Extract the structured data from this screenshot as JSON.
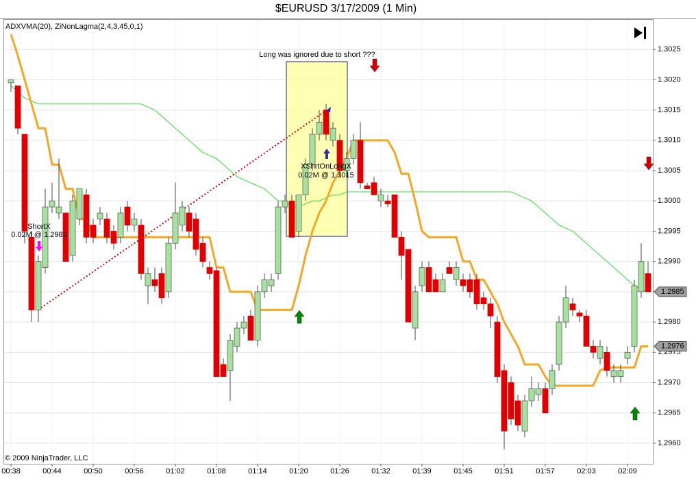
{
  "chart_data": {
    "type": "candlestick",
    "title": "$EURUSD  3/17/2009 (1 Min)",
    "indicator_label": "ADXVMA(20), ZiNonLagma(2,4,3,45,0,1)",
    "annotations": [
      "Long was ignored due to short ???",
      "ShortX",
      "0.02M @ 1.2982",
      "XShrtOnLongX",
      "0.02M @ 1.3015"
    ],
    "copyright": "© 2009 NinjaTrader, LLC",
    "categories": [
      "00:38",
      null,
      null,
      null,
      null,
      null,
      "00:44",
      null,
      null,
      null,
      null,
      null,
      "00:50",
      null,
      null,
      null,
      null,
      null,
      "00:56",
      null,
      null,
      null,
      null,
      null,
      "01:02",
      null,
      null,
      null,
      null,
      null,
      "01:08",
      null,
      null,
      null,
      null,
      null,
      "01:14",
      null,
      null,
      null,
      null,
      null,
      "01:20",
      null,
      null,
      null,
      null,
      null,
      "01:26",
      null,
      null,
      null,
      null,
      null,
      "01:32",
      null,
      null,
      null,
      null,
      null,
      "01:39",
      null,
      null,
      null,
      null,
      null,
      "01:45",
      null,
      null,
      null,
      null,
      null,
      "01:51",
      null,
      null,
      null,
      null,
      null,
      "01:57",
      null,
      null,
      null,
      null,
      null,
      "02:03",
      null,
      null,
      null,
      null,
      null,
      "02:09",
      null,
      null,
      null
    ],
    "ohlc": [
      [
        1.30195,
        1.302,
        1.3018,
        1.302
      ],
      [
        1.3019,
        1.3019,
        1.3011,
        1.3012
      ],
      [
        1.3011,
        1.3011,
        1.2993,
        1.2995
      ],
      [
        1.2994,
        1.2995,
        1.298,
        1.2982
      ],
      [
        1.2982,
        1.2991,
        1.298,
        1.299
      ],
      [
        1.2989,
        1.3002,
        1.2988,
        1.2999
      ],
      [
        1.2999,
        1.3003,
        1.2998,
        1.3
      ],
      [
        1.2998,
        1.3007,
        1.2997,
        1.2999
      ],
      [
        1.2998,
        1.2998,
        1.299,
        1.299
      ],
      [
        1.2991,
        1.3001,
        1.299,
        1.3
      ],
      [
        1.2997,
        1.3002,
        1.2996,
        1.3002
      ],
      [
        1.3001,
        1.3002,
        1.2993,
        1.2994
      ],
      [
        1.2996,
        1.2997,
        1.2993,
        1.2994
      ],
      [
        1.2997,
        1.2999,
        1.2996,
        1.2998
      ],
      [
        1.2997,
        1.2998,
        1.2993,
        1.2994
      ],
      [
        1.2995,
        1.2996,
        1.2992,
        1.2993
      ],
      [
        1.2994,
        1.2999,
        1.2993,
        1.2998
      ],
      [
        1.2999,
        1.3,
        1.2995,
        1.2996
      ],
      [
        1.2996,
        1.2998,
        1.2995,
        1.2997
      ],
      [
        1.2996,
        1.2997,
        1.2987,
        1.2988
      ],
      [
        1.2986,
        1.2989,
        1.2983,
        1.2988
      ],
      [
        1.2987,
        1.2989,
        1.2985,
        1.2986
      ],
      [
        1.2988,
        1.2989,
        1.2983,
        1.2984
      ],
      [
        1.2985,
        1.2994,
        1.2984,
        1.2993
      ],
      [
        1.2993,
        1.3003,
        1.2992,
        1.2998
      ],
      [
        1.2996,
        1.3,
        1.2995,
        1.2999
      ],
      [
        1.2998,
        1.2999,
        1.2994,
        1.2995
      ],
      [
        1.2997,
        1.2998,
        1.2991,
        1.2992
      ],
      [
        1.2993,
        1.2994,
        1.2989,
        1.299
      ],
      [
        1.2989,
        1.299,
        1.2987,
        1.2988
      ],
      [
        1.29885,
        1.2989,
        1.2971,
        1.2971
      ],
      [
        1.2973,
        1.2974,
        1.2971,
        1.2971
      ],
      [
        1.2972,
        1.2978,
        1.2967,
        1.2977
      ],
      [
        1.2976,
        1.298,
        1.2975,
        1.2979
      ],
      [
        1.2979,
        1.2981,
        1.2978,
        1.298
      ],
      [
        1.2981,
        1.2982,
        1.2977,
        1.2977
      ],
      [
        1.2977,
        1.2986,
        1.2976,
        1.2985
      ],
      [
        1.2985,
        1.2988,
        1.2984,
        1.2987
      ],
      [
        1.2986,
        1.2988,
        1.2985,
        1.2987
      ],
      [
        1.2988,
        1.3,
        1.2987,
        1.2999
      ],
      [
        1.2999,
        1.3001,
        1.2998,
        1.3
      ],
      [
        1.3,
        1.3001,
        1.2994,
        1.2994
      ],
      [
        1.2995,
        1.3001,
        1.2994,
        1.3001
      ],
      [
        1.3001,
        1.3007,
        1.3,
        1.3006
      ],
      [
        1.3006,
        1.3012,
        1.3005,
        1.3011
      ],
      [
        1.3011,
        1.3015,
        1.301,
        1.3013
      ],
      [
        1.3015,
        1.3016,
        1.301,
        1.3011
      ],
      [
        1.301,
        1.3013,
        1.3009,
        1.3012
      ],
      [
        1.301,
        1.3011,
        1.3004,
        1.3005
      ],
      [
        1.3005,
        1.3008,
        1.3004,
        1.3007
      ],
      [
        1.3007,
        1.3011,
        1.3006,
        1.301
      ],
      [
        1.301,
        1.3013,
        1.3002,
        1.3003
      ],
      [
        1.30025,
        1.3003,
        1.3002,
        1.3002
      ],
      [
        1.3003,
        1.3004,
        1.3001,
        1.3001
      ],
      [
        1.3,
        1.3002,
        1.2999,
        1.3001
      ],
      [
        1.3,
        1.3001,
        1.2999,
        1.29995
      ],
      [
        1.3001,
        1.3001,
        1.2994,
        1.2994
      ],
      [
        1.2994,
        1.2995,
        1.2987,
        1.2991
      ],
      [
        1.2992,
        1.2992,
        1.298,
        1.298
      ],
      [
        1.2979,
        1.2986,
        1.2977,
        1.2985
      ],
      [
        1.2986,
        1.299,
        1.2985,
        1.2989
      ],
      [
        1.2989,
        1.299,
        1.2985,
        1.2985
      ],
      [
        1.2987,
        1.2988,
        1.2985,
        1.2985
      ],
      [
        1.2985,
        1.2988,
        1.2985,
        1.2987
      ],
      [
        1.2989,
        1.299,
        1.2988,
        1.2988
      ],
      [
        1.2987,
        1.299,
        1.2986,
        1.2989
      ],
      [
        1.2987,
        1.2988,
        1.2985,
        1.2986
      ],
      [
        1.2987,
        1.2988,
        1.2984,
        1.2985
      ],
      [
        1.2987,
        1.2988,
        1.2982,
        1.2983
      ],
      [
        1.2984,
        1.2985,
        1.2982,
        1.2983
      ],
      [
        1.2983,
        1.2984,
        1.2979,
        1.2981
      ],
      [
        1.298,
        1.2981,
        1.297,
        1.2971
      ],
      [
        1.2972,
        1.2973,
        1.2959,
        1.2962
      ],
      [
        1.297,
        1.2971,
        1.2963,
        1.2964
      ],
      [
        1.2967,
        1.2968,
        1.2962,
        1.2963
      ],
      [
        1.2962,
        1.2968,
        1.2961,
        1.2967
      ],
      [
        1.2967,
        1.2971,
        1.2966,
        1.2969
      ],
      [
        1.2968,
        1.297,
        1.2967,
        1.2969
      ],
      [
        1.2969,
        1.297,
        1.2965,
        1.2965
      ],
      [
        1.2969,
        1.2973,
        1.2968,
        1.2972
      ],
      [
        1.2973,
        1.2981,
        1.2972,
        1.298
      ],
      [
        1.298,
        1.2986,
        1.2979,
        1.2984
      ],
      [
        1.2983,
        1.2984,
        1.2981,
        1.2982
      ],
      [
        1.29815,
        1.2982,
        1.298,
        1.2981
      ],
      [
        1.2981,
        1.2982,
        1.2976,
        1.2976
      ],
      [
        1.2976,
        1.2977,
        1.2974,
        1.2975
      ],
      [
        1.2974,
        1.2977,
        1.2973,
        1.2976
      ],
      [
        1.2975,
        1.2976,
        1.2971,
        1.2972
      ],
      [
        1.2971,
        1.2973,
        1.297,
        1.2972
      ],
      [
        1.2971,
        1.2973,
        1.297,
        1.2972
      ],
      [
        1.2974,
        1.2976,
        1.2973,
        1.2975
      ],
      [
        1.2976,
        1.2987,
        1.2975,
        1.2986
      ],
      [
        1.2985,
        1.2993,
        1.2984,
        1.299
      ],
      [
        1.2988,
        1.299,
        1.2985,
        1.2985
      ]
    ],
    "up_color": "#a8e0a0",
    "down_color": "#e00000",
    "lines": [
      {
        "color": "#33dd33",
        "values": [
          1.3019,
          1.3018,
          1.3017,
          1.30165,
          1.3016,
          1.3016,
          1.3016,
          1.3016,
          1.3016,
          1.3016,
          1.3016,
          1.3016,
          1.3016,
          1.3016,
          1.3016,
          1.3016,
          1.3016,
          1.3016,
          1.3016,
          1.3016,
          1.30155,
          1.3015,
          1.3014,
          1.3013,
          1.3012,
          1.3011,
          1.301,
          1.3009,
          1.3008,
          1.30075,
          1.3007,
          1.3006,
          1.3005,
          1.3004,
          1.30035,
          1.3003,
          1.30025,
          1.3002,
          1.3001,
          1.3,
          1.3,
          1.2999,
          1.2999,
          1.29995,
          1.3,
          1.3,
          1.30005,
          1.3001,
          1.3001,
          1.30015,
          1.30015,
          1.30015,
          1.30015,
          1.30015,
          1.30015,
          1.30015,
          1.30015,
          1.30015,
          1.30015,
          1.30015,
          1.30015,
          1.30015,
          1.30015,
          1.30015,
          1.30015,
          1.30015,
          1.30015,
          1.30015,
          1.30015,
          1.30015,
          1.30015,
          1.30015,
          1.30015,
          1.30015,
          1.3001,
          1.30005,
          1.3,
          1.2999,
          1.2998,
          1.2997,
          1.2996,
          1.29955,
          1.2995,
          1.2994,
          1.2993,
          1.2992,
          1.2991,
          1.299,
          1.2989,
          1.2988,
          1.2987,
          1.2986,
          1.29855,
          1.2985
        ]
      },
      {
        "color": "#f5a623",
        "values": [
          1.30275,
          1.3024,
          1.302,
          1.3016,
          1.3012,
          1.3012,
          1.3006,
          1.3006,
          1.3002,
          1.3002,
          1.2997,
          1.2997,
          1.2994,
          1.2994,
          1.2994,
          1.2994,
          1.2994,
          1.2994,
          1.2994,
          1.2994,
          1.2994,
          1.2994,
          1.2994,
          1.2994,
          1.2994,
          1.2994,
          1.2994,
          1.2994,
          1.2994,
          1.2994,
          1.2989,
          1.2989,
          1.2985,
          1.2985,
          1.2985,
          1.2985,
          1.2982,
          1.2982,
          1.2982,
          1.2982,
          1.2982,
          1.2982,
          1.2986,
          1.2991,
          1.2995,
          1.2998,
          1.3,
          1.3003,
          1.3005,
          1.3007,
          1.301,
          1.301,
          1.301,
          1.301,
          1.301,
          1.301,
          1.3008,
          1.30045,
          1.30045,
          1.3,
          1.2995,
          1.2994,
          1.2994,
          1.2994,
          1.2994,
          1.2994,
          1.299,
          1.299,
          1.2987,
          1.2987,
          1.2985,
          1.2983,
          1.298,
          1.2978,
          1.2976,
          1.2973,
          1.2973,
          1.2973,
          1.2971,
          1.29695,
          1.29695,
          1.29695,
          1.29695,
          1.29695,
          1.29695,
          1.29695,
          1.2972,
          1.29725,
          1.29725,
          1.29725,
          1.29725,
          1.29725,
          1.2976,
          1.2976
        ]
      }
    ],
    "ylim": [
      1.29566,
      1.303
    ],
    "yticks": [
      {
        "value": 1.296,
        "label": "1.2960"
      },
      1.2965,
      {
        "value": 1.297,
        "label": "1.2970"
      },
      1.2975,
      {
        "value": 1.298,
        "label": "1.2980"
      },
      1.2985,
      {
        "value": 1.299,
        "label": "1.2990"
      },
      1.2995,
      {
        "value": 1.3,
        "label": "1.3000"
      },
      1.3005,
      {
        "value": 1.301,
        "label": "1.3010"
      },
      1.3015,
      {
        "value": 1.302,
        "label": "1.3020"
      },
      1.3025
    ],
    "price_markers": [
      1.2985,
      1.2976
    ],
    "grid": true
  }
}
